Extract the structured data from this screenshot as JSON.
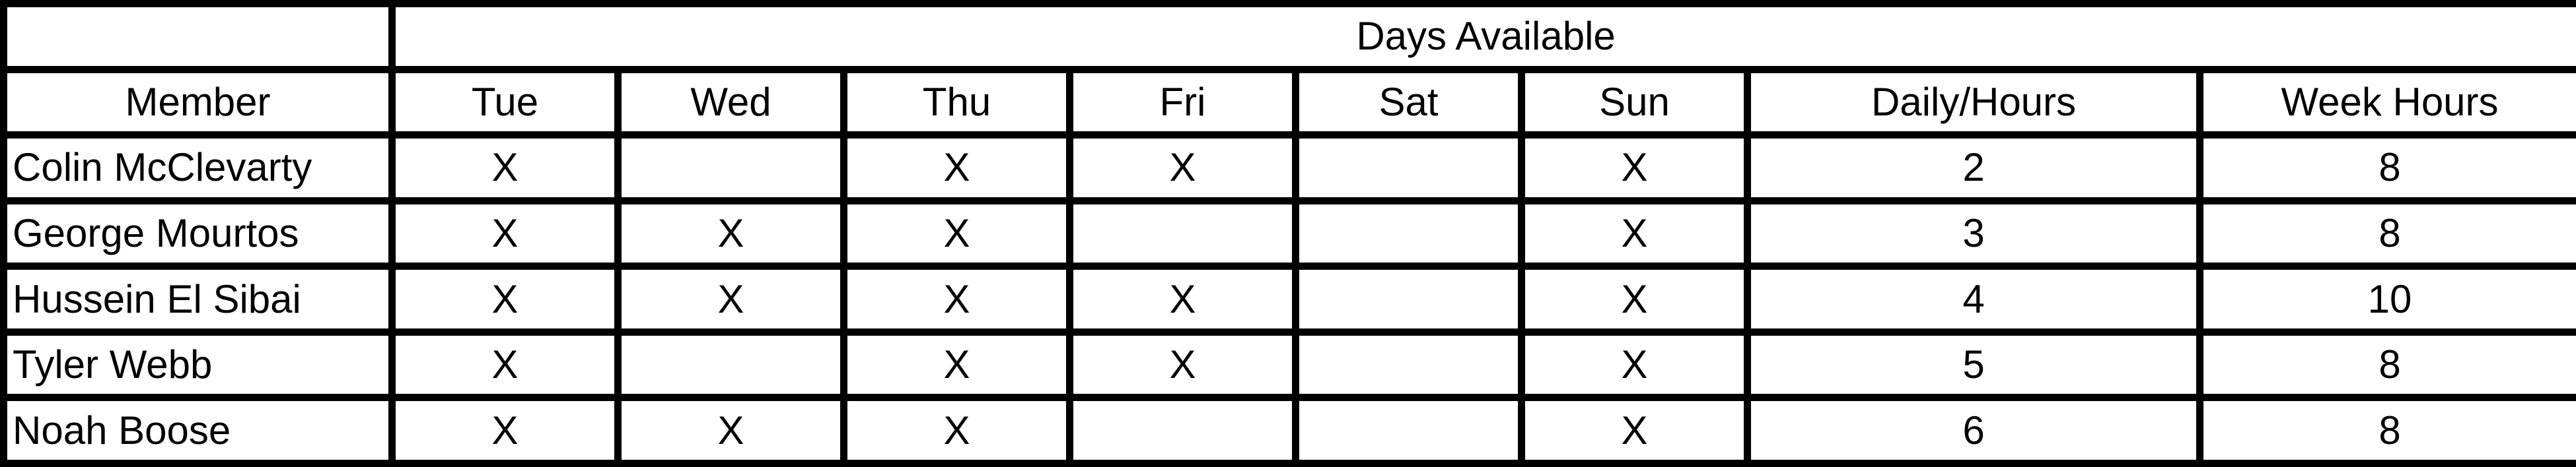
{
  "table": {
    "group_header": "Days Available",
    "columns": [
      "Member",
      "Tue",
      "Wed",
      "Thu",
      "Fri",
      "Sat",
      "Sun",
      "Daily/Hours",
      "Week Hours"
    ],
    "rows": [
      [
        "Colin McClevarty",
        "X",
        "",
        "X",
        "X",
        "",
        "X",
        "2",
        "8"
      ],
      [
        "George Mourtos",
        "X",
        "X",
        "X",
        "",
        "",
        "X",
        "3",
        "8"
      ],
      [
        "Hussein El Sibai",
        "X",
        "X",
        "X",
        "X",
        "",
        "X",
        "4",
        "10"
      ],
      [
        "Tyler Webb",
        "X",
        "",
        "X",
        "X",
        "",
        "X",
        "5",
        "8"
      ],
      [
        "Noah Boose",
        "X",
        "X",
        "X",
        "",
        "",
        "X",
        "6",
        "8"
      ]
    ]
  }
}
